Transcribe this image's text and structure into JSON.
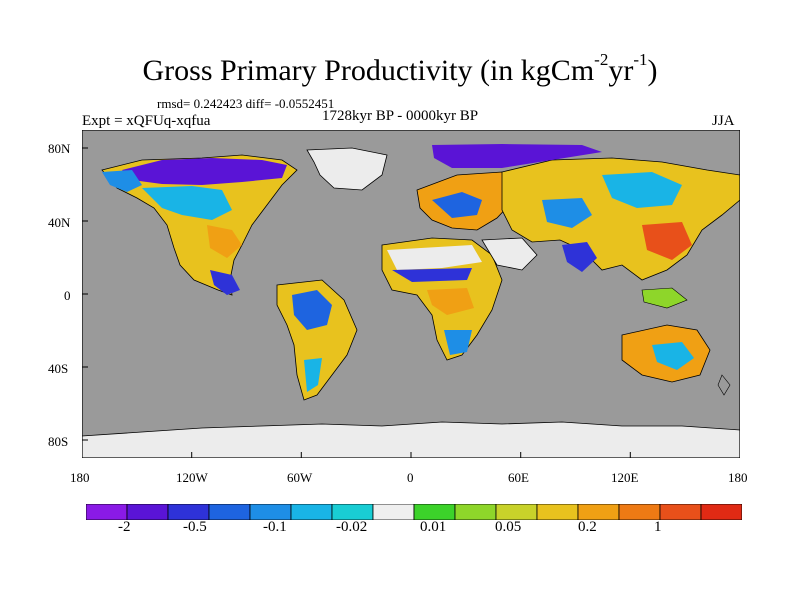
{
  "chart_data": {
    "type": "heatmap",
    "title_main": "Gross Primary Productivity (in kgCm",
    "title_unit_sup1": "-2",
    "title_unit_mid": "yr",
    "title_unit_sup2": "-1",
    "title_tail": ")",
    "stats": "rmsd= 0.242423 diff= -0.0552451",
    "experiment": "Expt = xQFUq-xqfua",
    "period": "1728kyr BP - 0000kyr BP",
    "season": "JJA",
    "lon_ticks": [
      "180",
      "120W",
      "60W",
      "0",
      "60E",
      "120E",
      "180"
    ],
    "lat_ticks": [
      "80N",
      "40N",
      "0",
      "40S",
      "80S"
    ],
    "colorbar_labels": [
      "-2",
      "-0.5",
      "-0.1",
      "-0.02",
      "0.01",
      "0.05",
      "0.2",
      "1"
    ],
    "colors": {
      "ocean": "#9a9a9a",
      "missing": "#ececec",
      "bins": [
        "#8a1ae6",
        "#5a14d6",
        "#2e32d8",
        "#1e64e0",
        "#1e8ee6",
        "#19b4e6",
        "#19cdd4",
        "#efefef",
        "#3cd22a",
        "#8ed62a",
        "#c8d22a",
        "#e8c21e",
        "#f0a014",
        "#ee7a14",
        "#e8501a",
        "#e02a14"
      ]
    }
  }
}
